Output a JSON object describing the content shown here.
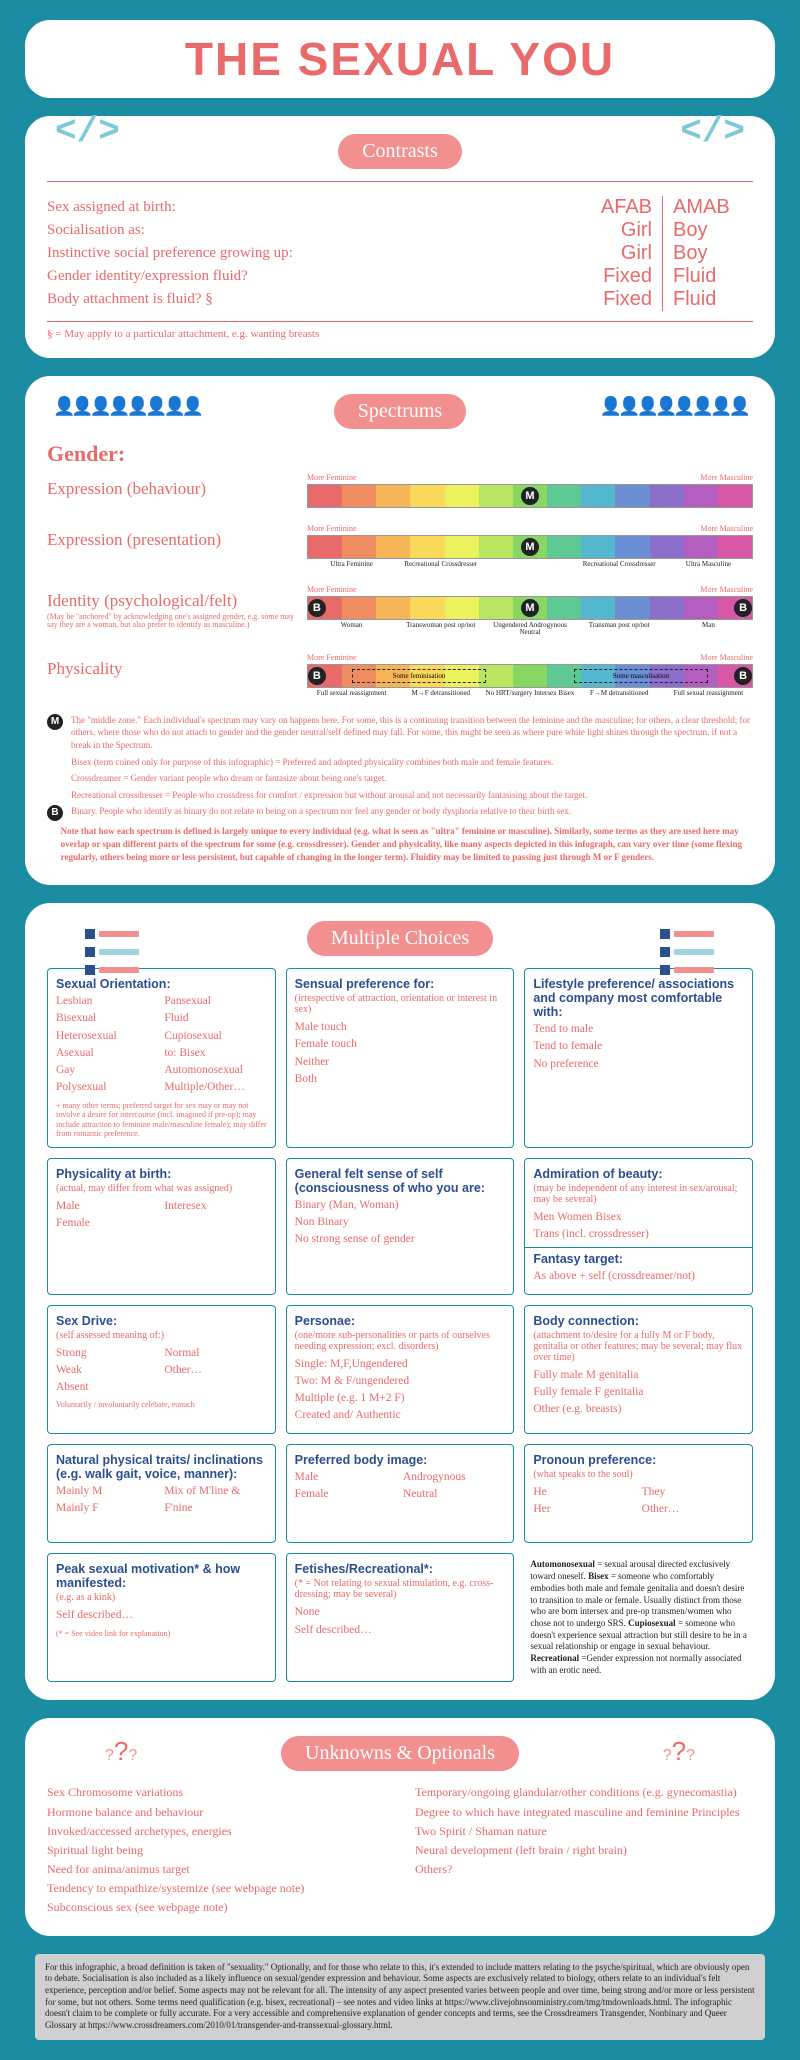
{
  "title": "THE SEXUAL YOU",
  "colors": {
    "bg": "#1c8ca3",
    "accent": "#e86a6a",
    "badge": "#f29090",
    "navy": "#2b4f8f",
    "cyan": "#7ec8d8"
  },
  "contrasts": {
    "badge": "Contrasts",
    "rows": [
      {
        "label": "Sex assigned at birth:",
        "left": "AFAB",
        "right": "AMAB"
      },
      {
        "label": "Socialisation as:",
        "left": "Girl",
        "right": "Boy"
      },
      {
        "label": "Instinctive social preference growing up:",
        "left": "Girl",
        "right": "Boy"
      },
      {
        "label": "Gender identity/expression fluid?",
        "left": "Fixed",
        "right": "Fluid"
      },
      {
        "label": "Body attachment is fluid? §",
        "left": "Fixed",
        "right": "Fluid"
      }
    ],
    "footnote": "§ = May apply to a particular attachment, e.g. wanting breasts"
  },
  "spectrums": {
    "badge": "Spectrums",
    "heading": "Gender:",
    "left_end": "More Feminine",
    "right_end": "More Masculine",
    "colors": [
      "#e86a6a",
      "#ee8d5f",
      "#f6b556",
      "#f9d95a",
      "#ecf15e",
      "#b9e560",
      "#88d763",
      "#5ec995",
      "#55b8cf",
      "#6a8fd6",
      "#8c6fcd",
      "#b45fc0",
      "#d858a7"
    ],
    "items": [
      {
        "label": "Expression (behaviour)",
        "markers": [
          {
            "t": "M",
            "pos": 50
          }
        ]
      },
      {
        "label": "Expression (presentation)",
        "markers": [
          {
            "t": "M",
            "pos": 50
          }
        ],
        "ticks": [
          "Ultra Feminine",
          "Recreational Crossdresser",
          "",
          "Recreational Crossdresser",
          "Ultra Masculine"
        ]
      },
      {
        "label": "Identity (psychological/felt)",
        "sub": "(May be \"anchored\" by acknowledging one's assigned gender, e.g. some may say they are a woman, but also prefer to identify as masculine.)",
        "markers": [
          {
            "t": "B",
            "pos": 2
          },
          {
            "t": "M",
            "pos": 50
          },
          {
            "t": "B",
            "pos": 98
          }
        ],
        "ticks": [
          "Woman",
          "Transwoman post op/not",
          "Ungendered Androgynous Neutral",
          "Transman post op/not",
          "Man"
        ]
      },
      {
        "label": "Physicality",
        "markers": [
          {
            "t": "B",
            "pos": 2
          },
          {
            "t": "B",
            "pos": 98
          }
        ],
        "ticks": [
          "Full sexual reassignment",
          "M→F detransitioned",
          "No HRT/surgery Intersex Bisex",
          "F→M detransitioned",
          "Full sexual reassignment"
        ],
        "overlay": true
      }
    ],
    "glossary": [
      {
        "orb": "M",
        "text": "The \"middle zone.\" Each individual's spectrum may vary on happens here. For some, this is a continuing transition between the feminine and the masculine; for others, a clear threshold; for others, where those who do not attach to gender and the gender neutral/self defined may fall. For some, this might be seen as where pure white light shines through the spectrum, if not a break in the Spectrum."
      },
      {
        "text": "Bisex (term coined only for purpose of this infographic) = Preferred and adopted physicality combines both male and female features."
      },
      {
        "text": "Crossdreamer = Gender variant people who dream or fantasize about being one's target."
      },
      {
        "text": "Recreational crossdresser = People who crossdress for comfort / expression but without arousal and not necessarily fantasising about the target."
      },
      {
        "orb": "B",
        "text": "Binary. People who identify as binary do not relate to being on a spectrum nor feel any gender or body dysphoria relative to their birth sex."
      },
      {
        "bold": true,
        "text": "Note that how each spectrum is defined is largely unique to every individual (e.g. what is seen as \"ultra\" feminine or masculine). Similarly, some terms as they are used here may overlap or span different parts of the spectrum for some (e.g. crossdresser). Gender and physicality, like many aspects depicted in this infograph, can vary over time (some flexing regularly, others being more or less persistent, but capable of changing in the longer term). Fluidity may be limited to passing just through M or F genders."
      }
    ]
  },
  "multiple": {
    "badge": "Multiple Choices",
    "boxes": [
      {
        "title": "Sexual Orientation:",
        "twocol": true,
        "opts": [
          "Lesbian",
          "Bisexual",
          "Heterosexual",
          "Asexual",
          "Gay",
          "Polysexual",
          "Pansexual",
          "Fluid",
          "Cupiosexual",
          "to: Bisex",
          "Automonosexual",
          "Multiple/Other…"
        ],
        "note": "+ many other terms; preferred target for sex may or may not involve a desire for intercourse (incl. imagined if pre-op); may include attraction to feminine male/masculine female); may differ from romantic preference."
      },
      {
        "title": "Sensual preference for:",
        "sub": "(irrespective of attraction, orientation or interest in sex)",
        "opts": [
          "Male touch",
          "Female touch",
          "Neither",
          "Both"
        ]
      },
      {
        "title": "Lifestyle preference/ associations and company most comfortable with:",
        "opts": [
          "Tend to male",
          "Tend to female",
          "No preference"
        ]
      },
      {
        "title": "Physicality at birth:",
        "sub": "(actual, may differ from what was assigned)",
        "twocol": true,
        "opts": [
          "Male",
          "Female",
          "Interesex",
          ""
        ]
      },
      {
        "title": "General felt sense of self (consciousness of who you are:",
        "opts": [
          "Binary (Man, Woman)",
          "Non Binary",
          "No strong sense of gender"
        ]
      },
      {
        "title": "Admiration of beauty:",
        "sub": "(may be independent of any interest in sex/arousal; may be several)",
        "opts": [
          "Men   Women   Bisex",
          "Trans (incl. crossdresser)"
        ],
        "extra_title": "Fantasy target:",
        "extra_opts": "As above + self (crossdreamer/not)"
      },
      {
        "title": "Sex Drive:",
        "sub": "(self assessed meaning of:)",
        "twocol": true,
        "opts": [
          "Strong",
          "Weak",
          "Absent",
          "Normal",
          "Other…",
          ""
        ],
        "note": "Voluntarily / involuntarily celebate, eunuch"
      },
      {
        "title": "Personae:",
        "sub": "(one/more sub-personalities or parts of ourselves needing expression; excl. disorders)",
        "opts": [
          "Single: M,F,Ungendered",
          "Two: M & F/ungendered",
          "Multiple (e.g. 1 M+2 F)",
          "Created and/ Authentic"
        ]
      },
      {
        "title": "Body connection:",
        "sub": "(attachment to/desire for a fully M or F body, genitalia or other features; may be several; may flux over time)",
        "opts": [
          "Fully male   M genitalia",
          "Fully female  F genitalia",
          "Other (e.g. breasts)"
        ]
      },
      {
        "title": "Natural physical traits/ inclinations (e.g. walk gait, voice, manner):",
        "twocol": true,
        "opts": [
          "Mainly M",
          "Mainly F",
          "Mix of M'line & F'nine",
          ""
        ]
      },
      {
        "title": "Preferred body image:",
        "twocol": true,
        "opts": [
          "Male",
          "Female",
          "Androgynous",
          "Neutral"
        ]
      },
      {
        "title": "Pronoun preference:",
        "sub": "(what speaks to the soul)",
        "twocol": true,
        "opts": [
          "He",
          "Her",
          "They",
          "Other…"
        ]
      },
      {
        "title": "Peak sexual motivation* & how manifested:",
        "sub": "(e.g. as a kink)",
        "opts": [
          "Self described…"
        ],
        "note": "(* = See video link for explanation)"
      },
      {
        "title": "Fetishes/Recreational*:",
        "sub": "(* = Not relating to sexual stimulation, e.g. cross-dressing; may be several)",
        "opts": [
          "None",
          "Self described…"
        ]
      },
      {
        "def": true,
        "text": "Automonosexual = sexual arousal directed exclusively toward oneself. Bisex = someone who comfortably embodies both male and female genitalia and doesn't desire to transition to male or female. Usually distinct from those who are born intersex and pre-op transmen/women who chose not to undergo SRS. Cupiosexual = someone who doesn't experience sexual attraction but still desire to be in a sexual relationship or engage in sexual behaviour. Recreational=Gender expression not normally associated with an erotic need."
      }
    ]
  },
  "unknowns": {
    "badge": "Unknowns & Optionals",
    "left": [
      "Sex Chromosome variations",
      "Hormone balance and behaviour",
      "Invoked/accessed archetypes, energies",
      "Spiritual light being",
      "Need for anima/animus target",
      "Tendency to empathize/systemize (see webpage note)",
      "Subconscious sex (see webpage note)"
    ],
    "right": [
      "Temporary/ongoing glandular/other conditions (e.g. gynecomastia)",
      "Degree to which have integrated masculine and feminine Principles",
      "Two Spirit / Shaman nature",
      "Neural development (left brain / right brain)",
      "Others?"
    ]
  },
  "disclaimer": "For this infographic, a broad definition is taken of \"sexuality.\" Optionally, and for those who relate to this, it's extended to include matters relating to the psyche/spiritual, which are obviously open to debate. Socialisation is also included as a likely influence on sexual/gender expression and behaviour. Some aspects are exclusively related to biology, others relate to an individual's felt experience, perception and/or belief. Some aspects may not be relevant for all. The intensity of any aspect presented varies between people and over time, being strong and/or more or less persistent for some, but not others. Some terms need qualification (e.g. bisex, recreational) – see notes and video links at https://www.clivejohnsonministry.com/tmg/tmdownloads.html. The infographic doesn't claim to be complete or fully accurate. For a very accessible and comprehensive explanation of gender concepts and terms, see the Crossdreamers Transgender, Nonbinary and Queer Glossary at https://www.crossdreamers.com/2010/01/transgender-and-transsexual-glossary.html."
}
